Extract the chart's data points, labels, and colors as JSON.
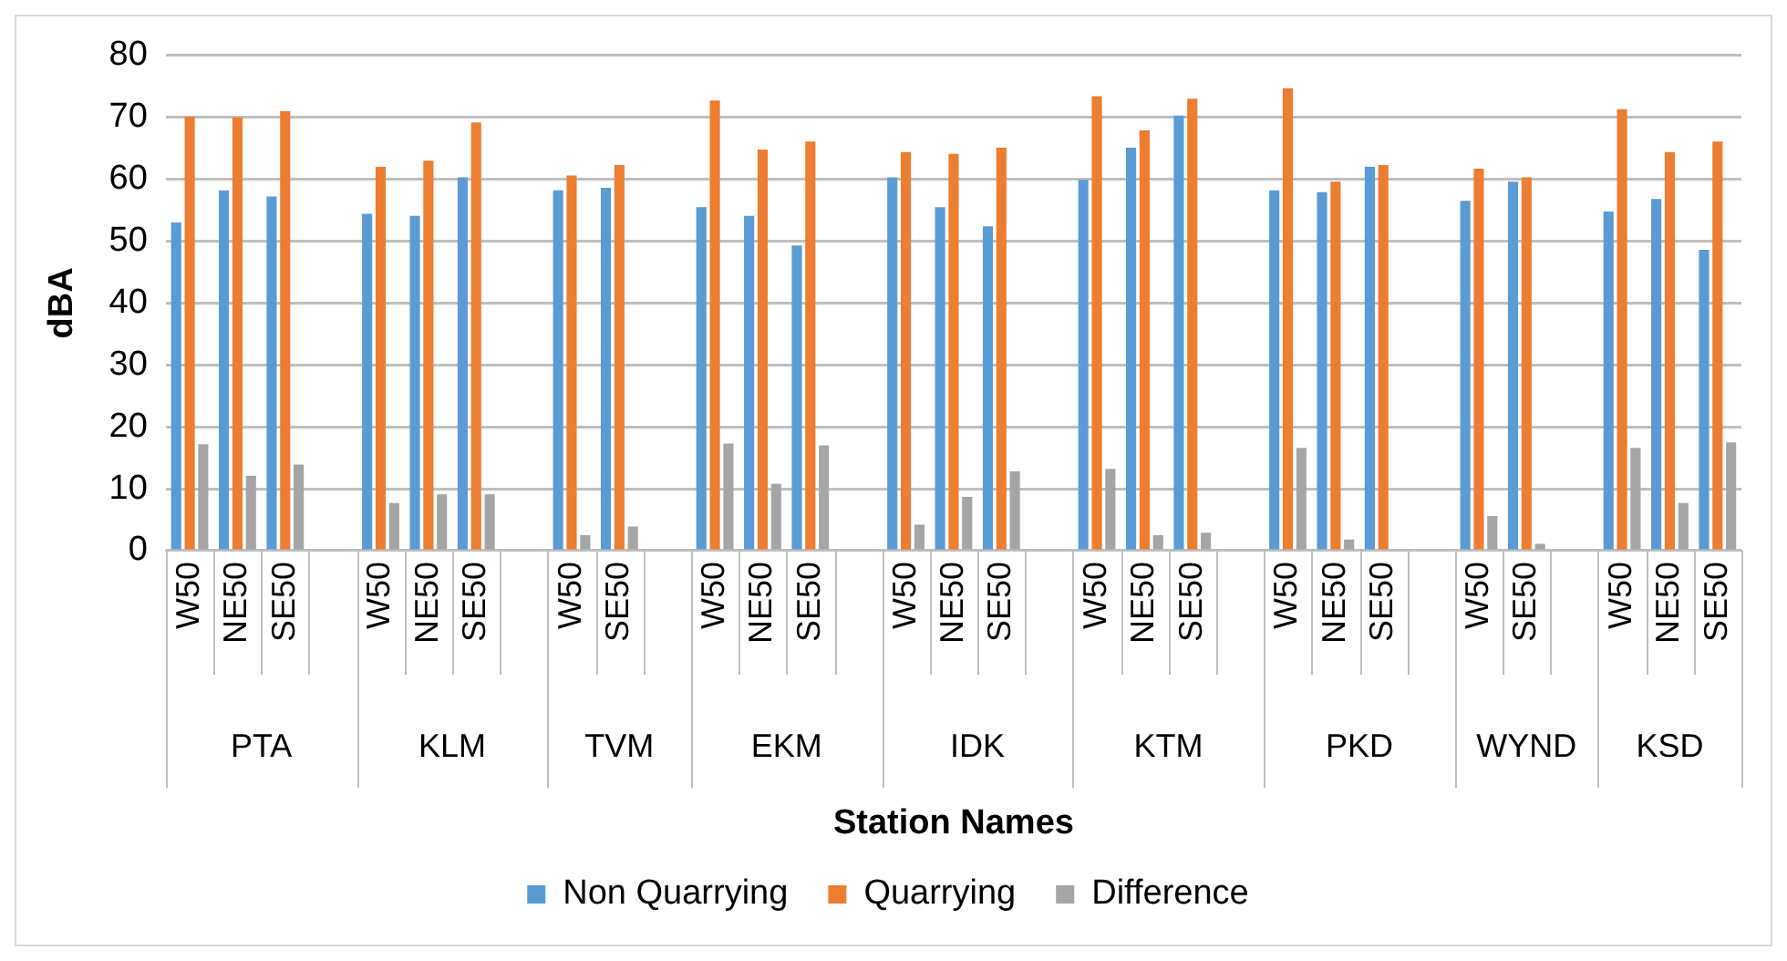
{
  "chart_data": {
    "type": "bar",
    "xlabel": "Station Names",
    "ylabel": "dBA",
    "categories": [
      "W50",
      "NE50",
      "SE50",
      null,
      "W50",
      "NE50",
      "SE50",
      null,
      "W50",
      "SE50",
      null,
      "W50",
      "NE50",
      "SE50",
      null,
      "W50",
      "NE50",
      "SE50",
      null,
      "W50",
      "NE50",
      "SE50",
      null,
      "W50",
      "NE50",
      "SE50",
      null,
      "W50",
      "SE50",
      null,
      "W50",
      "NE50",
      "SE50"
    ],
    "series": [
      {
        "name": "Non Quarrying",
        "color": "#5b9bd5",
        "values": [
          53,
          58.2,
          57.2,
          null,
          54.4,
          54.1,
          60.3,
          null,
          58.2,
          58.6,
          null,
          55.5,
          54.1,
          49.3,
          null,
          60.3,
          55.5,
          52.4,
          null,
          59.9,
          65.1,
          70.3,
          null,
          58.2,
          57.9,
          62,
          null,
          56.5,
          59.6,
          null,
          54.8,
          56.8,
          48.6
        ]
      },
      {
        "name": "Quarrying",
        "color": "#ed7d31",
        "values": [
          70.1,
          70,
          71,
          null,
          62,
          63,
          69.2,
          null,
          60.6,
          62.3,
          null,
          72.7,
          64.8,
          66.1,
          null,
          64.4,
          64.1,
          65.1,
          null,
          73.4,
          67.9,
          73,
          null,
          74.7,
          59.6,
          62.3,
          null,
          61.7,
          60.3,
          null,
          71.3,
          64.4,
          66.1
        ]
      },
      {
        "name": "Difference",
        "color": "#a5a5a5",
        "values": [
          17.2,
          12.1,
          13.9,
          null,
          7.7,
          9.1,
          9.1,
          null,
          2.5,
          3.9,
          null,
          17.3,
          10.8,
          17,
          null,
          4.2,
          8.7,
          12.8,
          null,
          13.2,
          2.5,
          2.9,
          null,
          16.6,
          1.8,
          0,
          null,
          5.6,
          1.1,
          null,
          16.6,
          7.7,
          17.5
        ]
      }
    ],
    "annotations": [
      "PTA",
      "KLM",
      "TVM",
      "EKM",
      "IDK",
      "KTM",
      "PKD",
      "WYND",
      "KSD"
    ],
    "ylim": [
      0,
      80
    ],
    "yticks": [
      0,
      10,
      20,
      30,
      40,
      50,
      60,
      70,
      80
    ],
    "grid": "y",
    "legend": "bottom"
  }
}
